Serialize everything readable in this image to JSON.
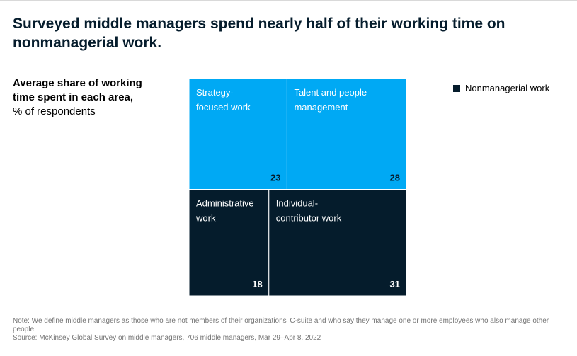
{
  "title": "Surveyed middle managers spend nearly half of their working time on nonmanagerial work.",
  "subtitle": {
    "bold": "Average share of working time spent in each area,",
    "unit": "% of respondents"
  },
  "legend": {
    "label": "Nonmanagerial work",
    "color": "#051c2c"
  },
  "colors": {
    "managerial": "#00a9f4",
    "nonmanagerial": "#051c2c",
    "divider": "#ffffff"
  },
  "chart_data": {
    "type": "treemap",
    "unit": "% of respondents",
    "rows": [
      {
        "group": "managerial",
        "items": [
          {
            "label_lines": [
              "Strategy-",
              "focused work"
            ],
            "value": 23
          },
          {
            "label_lines": [
              "Talent and people",
              "management"
            ],
            "value": 28
          }
        ]
      },
      {
        "group": "nonmanagerial",
        "items": [
          {
            "label_lines": [
              "Administrative",
              "work"
            ],
            "value": 18
          },
          {
            "label_lines": [
              "Individual-",
              "contributor work"
            ],
            "value": 31
          }
        ]
      }
    ]
  },
  "footnotes": {
    "note": "Note: We define middle managers as those who are not members of their organizations' C-suite and who say they manage one or more employees who also manage other people.",
    "source": "Source: McKinsey Global Survey on middle managers, 706 middle managers, Mar 29–Apr 8, 2022"
  }
}
